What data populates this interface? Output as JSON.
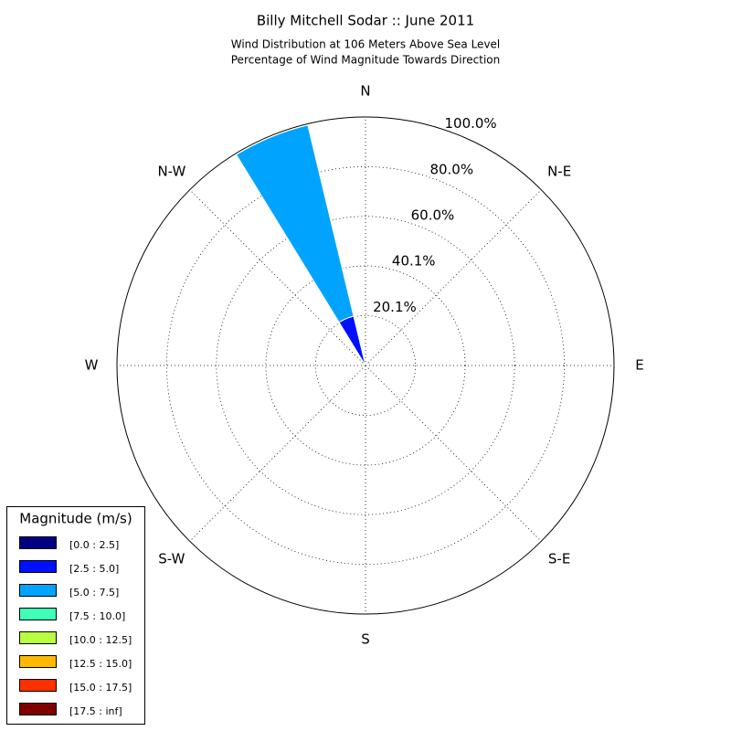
{
  "chart_data": {
    "type": "windrose",
    "title": "Billy Mitchell Sodar :: June 2011",
    "subtitle": [
      "Wind Distribution at 106 Meters Above Sea Level",
      "Percentage of Wind Magnitude Towards Direction"
    ],
    "categories": [
      "N",
      null,
      "N-E",
      null,
      "E",
      null,
      "S-E",
      null,
      "S",
      null,
      "S-W",
      null,
      "W",
      null,
      "N-W",
      null
    ],
    "ylim": [
      0,
      100
    ],
    "yticks": [
      {
        "value": 20.1,
        "label": "20.1%"
      },
      {
        "value": 40.1,
        "label": "40.1%"
      },
      {
        "value": 60.0,
        "label": "60.0%"
      },
      {
        "value": 80.0,
        "label": "80.0%"
      },
      {
        "value": 100.0,
        "label": "100.0%"
      }
    ],
    "legend_title": "Magnitude (m/s)",
    "legend_position": "lower left",
    "series": [
      {
        "name": "[0.0 : 2.5]",
        "color": "#000080",
        "values": [
          0,
          0,
          0,
          0,
          0,
          0,
          0,
          0,
          0,
          0,
          0,
          0,
          0,
          0,
          0,
          0
        ]
      },
      {
        "name": "[2.5 : 5.0]",
        "color": "#0010ff",
        "values": [
          0,
          0,
          0,
          0,
          0,
          0,
          0,
          0,
          0,
          0,
          0,
          0,
          0,
          0,
          0,
          20.4
        ]
      },
      {
        "name": "[5.0 : 7.5]",
        "color": "#00a4ff",
        "values": [
          0,
          0,
          0,
          0,
          0,
          0,
          0,
          0,
          0,
          0,
          0,
          0,
          0,
          0,
          0,
          79.1
        ]
      },
      {
        "name": "[7.5 : 10.0]",
        "color": "#40ffb7",
        "values": [
          0,
          0,
          0,
          0,
          0,
          0,
          0,
          0,
          0,
          0,
          0,
          0,
          0,
          0,
          0,
          0
        ]
      },
      {
        "name": "[10.0 : 12.5]",
        "color": "#b7ff40",
        "values": [
          0,
          0,
          0,
          0,
          0,
          0,
          0,
          0,
          0,
          0,
          0,
          0,
          0,
          0,
          0,
          0
        ]
      },
      {
        "name": "[12.5 : 15.0]",
        "color": "#ffb900",
        "values": [
          0,
          0,
          0,
          0,
          0,
          0,
          0,
          0,
          0,
          0,
          0,
          0,
          0,
          0,
          0,
          0
        ]
      },
      {
        "name": "[15.0 : 17.5]",
        "color": "#ff3000",
        "values": [
          0,
          0,
          0,
          0,
          0,
          0,
          0,
          0,
          0,
          0,
          0,
          0,
          0,
          0,
          0,
          0
        ]
      },
      {
        "name": "[17.5 : inf]",
        "color": "#800000",
        "values": [
          0,
          0,
          0,
          0,
          0,
          0,
          0,
          0,
          0,
          0,
          0,
          0,
          0,
          0,
          0,
          0
        ]
      }
    ]
  }
}
